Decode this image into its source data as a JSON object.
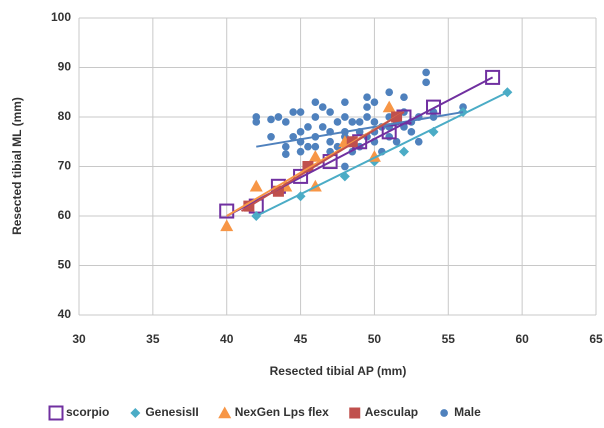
{
  "chart_data": {
    "type": "scatter",
    "xlabel": "Resected tibial AP (mm)",
    "ylabel": "Resected tibial ML (mm)",
    "xlim": [
      30,
      65
    ],
    "xticks": [
      30,
      35,
      40,
      45,
      50,
      55,
      60,
      65
    ],
    "ylim": [
      40,
      100
    ],
    "yticks": [
      40,
      50,
      60,
      70,
      80,
      90,
      100
    ],
    "grid": true,
    "legend": "bottom",
    "series": [
      {
        "name": "Male",
        "color": "#4f81bd",
        "marker": "circle",
        "x": [
          42,
          43,
          43,
          44,
          44,
          44.5,
          44.5,
          45,
          45,
          45,
          45,
          45.5,
          45.5,
          46,
          46,
          46,
          46,
          46.5,
          46.5,
          47,
          47,
          47,
          47,
          47.5,
          47.5,
          48,
          48,
          48,
          48,
          48.5,
          48.5,
          49,
          49,
          49,
          49.5,
          49.5,
          49.5,
          49.5,
          50,
          50,
          50,
          50,
          50.5,
          50.5,
          51,
          51,
          51,
          51,
          51.5,
          51.5,
          52,
          52,
          52,
          52.5,
          52.5,
          53,
          53,
          53.5,
          53.5,
          54,
          54,
          56,
          42,
          43.5,
          44,
          48
        ],
        "y": [
          80,
          79.5,
          76,
          79,
          74,
          81,
          76,
          81,
          77,
          75,
          73,
          78,
          74,
          83,
          80,
          76,
          74,
          82,
          78,
          81,
          77,
          75,
          73,
          79,
          74,
          83,
          80,
          77,
          76,
          79,
          73,
          79,
          77,
          74,
          84,
          82,
          80,
          76,
          83,
          79,
          77,
          75,
          78,
          73,
          85,
          80,
          78,
          76,
          79,
          75,
          84,
          81,
          78,
          79,
          77,
          75,
          80,
          89,
          87,
          81,
          80,
          82,
          79,
          80,
          72.5,
          70
        ],
        "trendline": {
          "x": [
            42,
            56
          ],
          "y": [
            74,
            81
          ]
        }
      },
      {
        "name": "scorpio",
        "color": "#7030a0",
        "marker": "square-open",
        "x": [
          40,
          42,
          43.5,
          45,
          47,
          49,
          51,
          52,
          54,
          58
        ],
        "y": [
          61,
          62,
          66,
          68,
          71,
          75,
          77,
          80,
          82,
          88
        ],
        "trendline": {
          "x": [
            40,
            58
          ],
          "y": [
            60,
            88
          ]
        }
      },
      {
        "name": "GenesisII",
        "color": "#4bacc6",
        "marker": "diamond",
        "x": [
          42,
          45,
          48,
          50,
          52,
          54,
          56,
          59
        ],
        "y": [
          60,
          64,
          68,
          71,
          73,
          77,
          81,
          85
        ],
        "trendline": {
          "x": [
            42,
            59
          ],
          "y": [
            60,
            85
          ]
        }
      },
      {
        "name": "NexGen Lps flex",
        "color": "#f79646",
        "marker": "triangle",
        "x": [
          40,
          42,
          44,
          46,
          46,
          48,
          50,
          51
        ],
        "y": [
          58,
          66,
          66,
          66,
          72,
          75,
          72,
          82
        ],
        "trendline": {
          "x": [
            40,
            52
          ],
          "y": [
            60,
            81
          ]
        }
      },
      {
        "name": "Aesculap",
        "color": "#c0504d",
        "marker": "square",
        "x": [
          41.5,
          43.5,
          45.5,
          48.5,
          51.5
        ],
        "y": [
          62,
          65,
          70,
          75,
          80
        ],
        "trendline": {
          "x": [
            41,
            52
          ],
          "y": [
            61,
            81
          ]
        }
      }
    ],
    "legend_order": [
      1,
      2,
      3,
      4,
      0
    ]
  }
}
